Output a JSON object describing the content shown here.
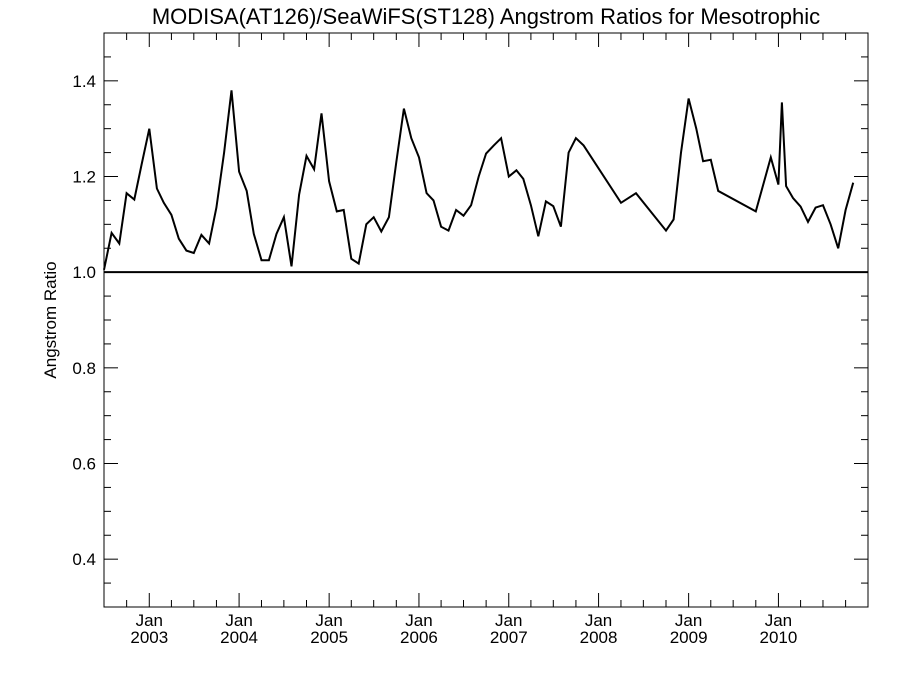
{
  "chart_data": {
    "type": "line",
    "title": "MODISA(AT126)/SeaWiFS(ST128)  Angstrom Ratios for Mesotrophic",
    "xlabel": "",
    "ylabel": "Angstrom Ratio",
    "xlim": [
      "2002-07-01",
      "2010-12-31"
    ],
    "ylim": [
      0.3,
      1.5
    ],
    "y_ticks": [
      0.4,
      0.6,
      0.8,
      1.0,
      1.2,
      1.4
    ],
    "y_tick_labels": [
      "0.4",
      "0.6",
      "0.8",
      "1.0",
      "1.2",
      "1.4"
    ],
    "x_ticks": [
      {
        "date": "2003-01-01",
        "month": "Jan",
        "year": "2003"
      },
      {
        "date": "2004-01-01",
        "month": "Jan",
        "year": "2004"
      },
      {
        "date": "2005-01-01",
        "month": "Jan",
        "year": "2005"
      },
      {
        "date": "2006-01-01",
        "month": "Jan",
        "year": "2006"
      },
      {
        "date": "2007-01-01",
        "month": "Jan",
        "year": "2007"
      },
      {
        "date": "2008-01-01",
        "month": "Jan",
        "year": "2008"
      },
      {
        "date": "2009-01-01",
        "month": "Jan",
        "year": "2009"
      },
      {
        "date": "2010-01-01",
        "month": "Jan",
        "year": "2010"
      }
    ],
    "reference_line": {
      "y": 1.0
    },
    "grid": false,
    "series": [
      {
        "points": [
          [
            "2002-07-01",
            1.005
          ],
          [
            "2002-08-01",
            1.082
          ],
          [
            "2002-09-01",
            1.06
          ],
          [
            "2002-10-01",
            1.165
          ],
          [
            "2002-11-01",
            1.152
          ],
          [
            "2002-12-01",
            1.225
          ],
          [
            "2003-01-01",
            1.3
          ],
          [
            "2003-02-01",
            1.175
          ],
          [
            "2003-03-01",
            1.145
          ],
          [
            "2003-04-01",
            1.12
          ],
          [
            "2003-05-01",
            1.07
          ],
          [
            "2003-06-01",
            1.045
          ],
          [
            "2003-07-01",
            1.04
          ],
          [
            "2003-08-01",
            1.078
          ],
          [
            "2003-09-01",
            1.06
          ],
          [
            "2003-10-01",
            1.135
          ],
          [
            "2003-11-01",
            1.25
          ],
          [
            "2003-12-01",
            1.38
          ],
          [
            "2004-01-01",
            1.21
          ],
          [
            "2004-02-01",
            1.17
          ],
          [
            "2004-03-01",
            1.08
          ],
          [
            "2004-04-01",
            1.025
          ],
          [
            "2004-05-01",
            1.025
          ],
          [
            "2004-06-01",
            1.08
          ],
          [
            "2004-07-01",
            1.115
          ],
          [
            "2004-08-01",
            1.012
          ],
          [
            "2004-09-01",
            1.162
          ],
          [
            "2004-10-01",
            1.243
          ],
          [
            "2004-11-01",
            1.215
          ],
          [
            "2004-12-01",
            1.332
          ],
          [
            "2005-01-01",
            1.19
          ],
          [
            "2005-02-01",
            1.127
          ],
          [
            "2005-03-01",
            1.13
          ],
          [
            "2005-04-01",
            1.028
          ],
          [
            "2005-05-01",
            1.018
          ],
          [
            "2005-06-01",
            1.1
          ],
          [
            "2005-07-01",
            1.115
          ],
          [
            "2005-08-01",
            1.085
          ],
          [
            "2005-09-01",
            1.115
          ],
          [
            "2005-10-01",
            1.23
          ],
          [
            "2005-11-01",
            1.342
          ],
          [
            "2005-12-01",
            1.28
          ],
          [
            "2006-01-01",
            1.24
          ],
          [
            "2006-02-01",
            1.165
          ],
          [
            "2006-03-01",
            1.15
          ],
          [
            "2006-04-01",
            1.095
          ],
          [
            "2006-05-01",
            1.087
          ],
          [
            "2006-06-01",
            1.13
          ],
          [
            "2006-07-01",
            1.118
          ],
          [
            "2006-08-01",
            1.14
          ],
          [
            "2006-09-01",
            1.2
          ],
          [
            "2006-10-01",
            1.248
          ],
          [
            "2006-11-01",
            1.265
          ],
          [
            "2006-12-01",
            1.28
          ],
          [
            "2007-01-01",
            1.2
          ],
          [
            "2007-02-01",
            1.213
          ],
          [
            "2007-03-01",
            1.195
          ],
          [
            "2007-04-01",
            1.14
          ],
          [
            "2007-05-01",
            1.075
          ],
          [
            "2007-06-01",
            1.148
          ],
          [
            "2007-07-01",
            1.138
          ],
          [
            "2007-08-01",
            1.095
          ],
          [
            "2007-09-01",
            1.25
          ],
          [
            "2007-10-01",
            1.28
          ],
          [
            "2007-11-01",
            1.265
          ],
          [
            "2008-04-01",
            1.145
          ],
          [
            "2008-06-01",
            1.165
          ],
          [
            "2008-10-01",
            1.087
          ],
          [
            "2008-11-01",
            1.11
          ],
          [
            "2008-12-01",
            1.25
          ],
          [
            "2009-01-01",
            1.363
          ],
          [
            "2009-02-01",
            1.3
          ],
          [
            "2009-03-01",
            1.232
          ],
          [
            "2009-04-01",
            1.235
          ],
          [
            "2009-05-01",
            1.17
          ],
          [
            "2009-10-01",
            1.127
          ],
          [
            "2009-12-01",
            1.24
          ],
          [
            "2010-01-01",
            1.183
          ],
          [
            "2010-01-15",
            1.355
          ],
          [
            "2010-02-01",
            1.18
          ],
          [
            "2010-03-01",
            1.155
          ],
          [
            "2010-04-01",
            1.137
          ],
          [
            "2010-05-01",
            1.105
          ],
          [
            "2010-06-01",
            1.135
          ],
          [
            "2010-07-01",
            1.14
          ],
          [
            "2010-08-01",
            1.1
          ],
          [
            "2010-09-01",
            1.05
          ],
          [
            "2010-10-01",
            1.13
          ],
          [
            "2010-11-01",
            1.187
          ]
        ]
      }
    ]
  }
}
